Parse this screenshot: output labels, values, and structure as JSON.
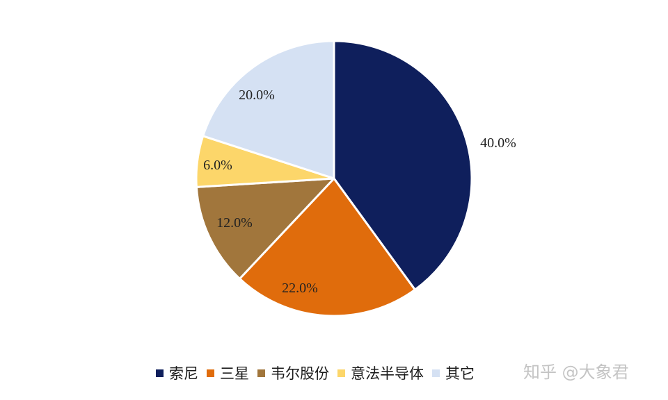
{
  "chart_data": {
    "type": "pie",
    "slices": [
      {
        "name": "索尼",
        "value": 40.0,
        "label": "40.0%",
        "color": "#0f1f5c"
      },
      {
        "name": "三星",
        "value": 22.0,
        "label": "22.0%",
        "color": "#e06c0c"
      },
      {
        "name": "韦尔股份",
        "value": 12.0,
        "label": "12.0%",
        "color": "#a1763c"
      },
      {
        "name": "意法半导体",
        "value": 6.0,
        "label": "6.0%",
        "color": "#fcd66a"
      },
      {
        "name": "其它",
        "value": 20.0,
        "label": "20.0%",
        "color": "#d5e1f3"
      }
    ],
    "start_angle_deg": 0,
    "direction": "clockwise",
    "legend_position": "bottom"
  },
  "watermark": "知乎 @大象君"
}
